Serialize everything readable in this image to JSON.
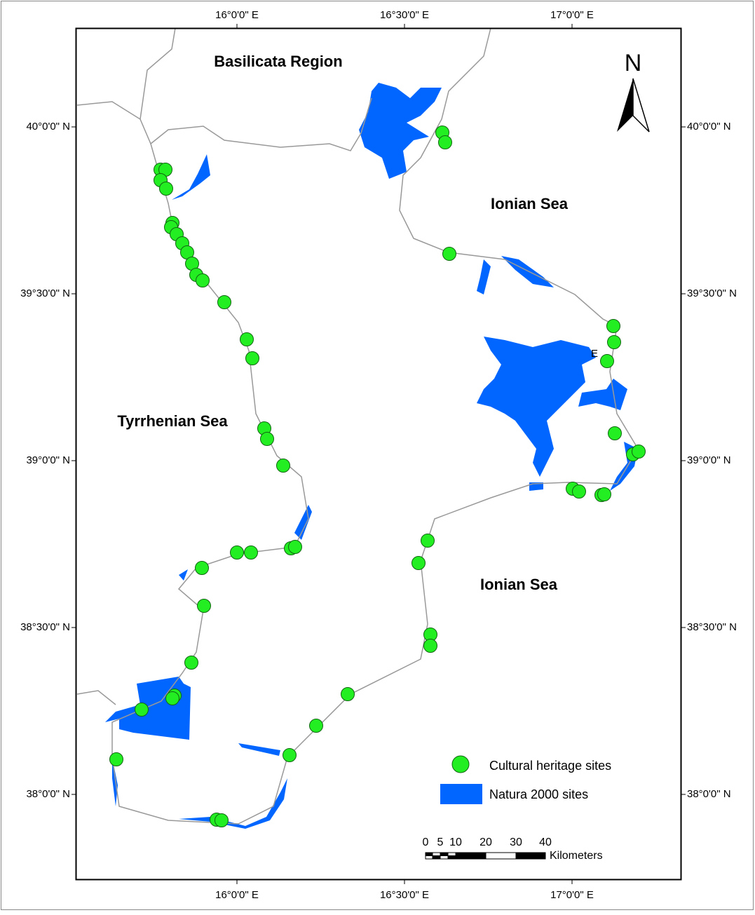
{
  "labels": {
    "region": "Basilicata Region",
    "sea_north": "Ionian Sea",
    "sea_south": "Ionian Sea",
    "sea_west": "Tyrrhenian Sea",
    "stray": "E"
  },
  "north_arrow": "N",
  "graticule": {
    "longitudes": [
      "16°0'0\" E",
      "16°30'0\" E",
      "17°0'0\" E"
    ],
    "latitudes": [
      "40°0'0\" N",
      "39°30'0\" N",
      "39°0'0\" N",
      "38°30'0\" N",
      "38°0'0\" N"
    ]
  },
  "legend": [
    "Cultural heritage sites",
    "Natura 2000 sites"
  ],
  "scale_bar": {
    "ticks": [
      "0",
      "5",
      "10",
      "20",
      "30",
      "40"
    ],
    "unit": "Kilometers"
  }
}
